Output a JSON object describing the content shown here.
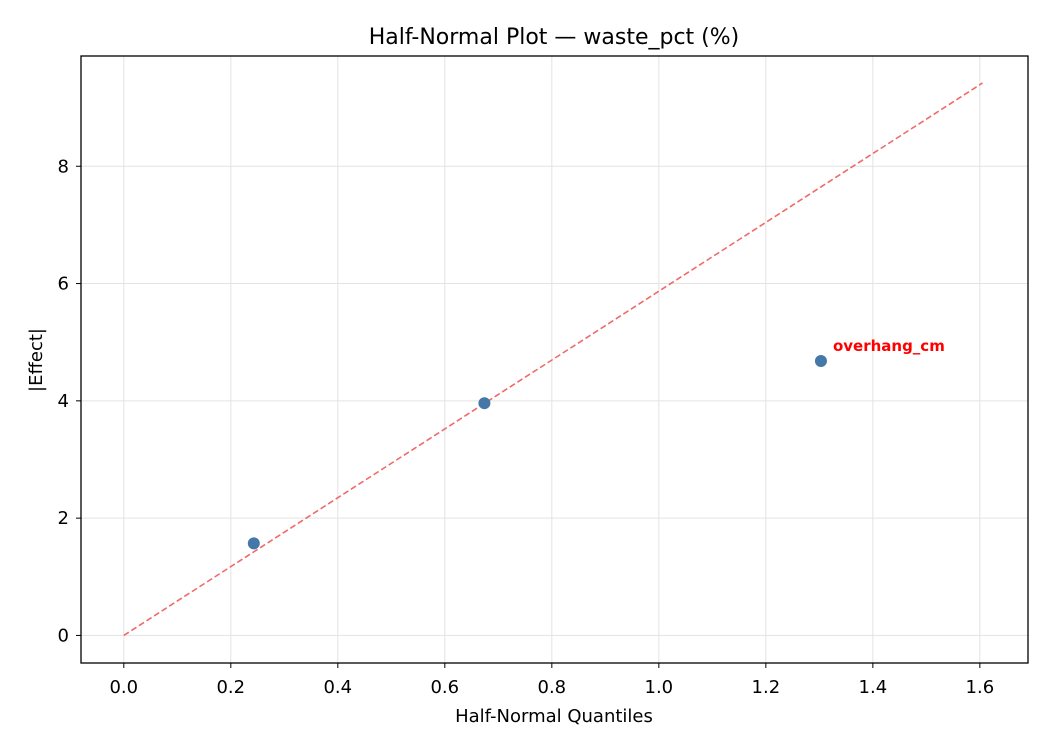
{
  "chart_data": {
    "type": "scatter",
    "title": "Half-Normal Plot — waste_pct (%)",
    "xlabel": "Half-Normal Quantiles",
    "ylabel": "|Effect|",
    "xlim": [
      -0.08,
      1.69
    ],
    "ylim": [
      -0.47,
      9.88
    ],
    "xticks": [
      0.0,
      0.2,
      0.4,
      0.6,
      0.8,
      1.0,
      1.2,
      1.4,
      1.6
    ],
    "xtick_labels": [
      "0.0",
      "0.2",
      "0.4",
      "0.6",
      "0.8",
      "1.0",
      "1.2",
      "1.4",
      "1.6"
    ],
    "yticks": [
      0,
      2,
      4,
      6,
      8
    ],
    "ytick_labels": [
      "0",
      "2",
      "4",
      "6",
      "8"
    ],
    "grid": true,
    "points": [
      {
        "x": 0.243,
        "y": 1.57
      },
      {
        "x": 0.674,
        "y": 3.96
      },
      {
        "x": 1.303,
        "y": 4.68,
        "label": "overhang_cm"
      }
    ],
    "reference_line": {
      "style": "dashed",
      "from": [
        0.0,
        0.0
      ],
      "to": [
        1.605,
        9.42
      ]
    },
    "colors": {
      "points": "#4378a8",
      "reference_line": "#f06a6a",
      "annotation": "#ff0000",
      "grid": "#e3e3e3"
    }
  }
}
